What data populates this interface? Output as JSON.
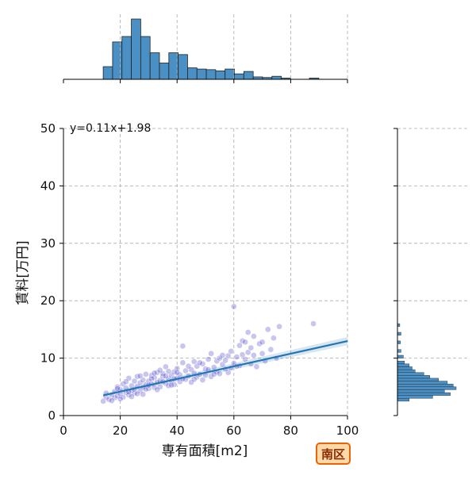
{
  "chart_data": {
    "type": "scatter",
    "title": "",
    "xlabel": "専有面積[m2]",
    "ylabel": "賃料[万円]",
    "xlim": [
      0,
      100
    ],
    "ylim": [
      0,
      50
    ],
    "x_ticks": [
      0,
      20,
      40,
      60,
      80,
      100
    ],
    "y_ticks": [
      0,
      10,
      20,
      30,
      40,
      50
    ],
    "grid": true,
    "badge": "南区",
    "regression": {
      "label": "y=0.11x+1.98",
      "slope": 0.11,
      "intercept": 1.98,
      "x_range": [
        14,
        100
      ],
      "color": "#1f77b4"
    },
    "point_color": "#3a2fc4",
    "hist_color": "#4a90c4",
    "top_histogram": {
      "bin_start": 14,
      "bin_width": 3.3,
      "relative_heights": [
        0.21,
        0.62,
        0.71,
        1.0,
        0.71,
        0.44,
        0.27,
        0.44,
        0.41,
        0.19,
        0.17,
        0.16,
        0.14,
        0.17,
        0.09,
        0.13,
        0.04,
        0.03,
        0.05,
        0.02,
        0.0,
        0.0,
        0.02
      ]
    },
    "right_histogram": {
      "bins": [
        {
          "y": 2.5,
          "rel": 0.2
        },
        {
          "y": 3.0,
          "rel": 0.6
        },
        {
          "y": 3.5,
          "rel": 0.9
        },
        {
          "y": 4.0,
          "rel": 0.8
        },
        {
          "y": 4.5,
          "rel": 1.0
        },
        {
          "y": 5.0,
          "rel": 0.95
        },
        {
          "y": 5.5,
          "rel": 0.85
        },
        {
          "y": 6.0,
          "rel": 0.7
        },
        {
          "y": 6.5,
          "rel": 0.55
        },
        {
          "y": 7.0,
          "rel": 0.45
        },
        {
          "y": 7.5,
          "rel": 0.3
        },
        {
          "y": 8.0,
          "rel": 0.25
        },
        {
          "y": 8.5,
          "rel": 0.2
        },
        {
          "y": 9.0,
          "rel": 0.12
        },
        {
          "y": 10.0,
          "rel": 0.1
        },
        {
          "y": 11.0,
          "rel": 0.06
        },
        {
          "y": 12.5,
          "rel": 0.05
        },
        {
          "y": 14.0,
          "rel": 0.06
        },
        {
          "y": 15.5,
          "rel": 0.04
        }
      ]
    },
    "points": [
      [
        14,
        2.5
      ],
      [
        15,
        3.2
      ],
      [
        16,
        2.8
      ],
      [
        17,
        3.6
      ],
      [
        18,
        3.1
      ],
      [
        18,
        4.2
      ],
      [
        19,
        3.4
      ],
      [
        19,
        5.0
      ],
      [
        20,
        3.8
      ],
      [
        20,
        4.5
      ],
      [
        21,
        3.2
      ],
      [
        21,
        5.5
      ],
      [
        22,
        4.0
      ],
      [
        22,
        4.8
      ],
      [
        23,
        3.6
      ],
      [
        23,
        6.5
      ],
      [
        24,
        4.4
      ],
      [
        24,
        5.2
      ],
      [
        25,
        3.9
      ],
      [
        25,
        6.0
      ],
      [
        25,
        4.6
      ],
      [
        26,
        5.1
      ],
      [
        26,
        6.8
      ],
      [
        27,
        4.3
      ],
      [
        27,
        5.7
      ],
      [
        28,
        4.9
      ],
      [
        28,
        6.2
      ],
      [
        29,
        5.4
      ],
      [
        29,
        7.2
      ],
      [
        30,
        4.7
      ],
      [
        30,
        6.0
      ],
      [
        31,
        5.5
      ],
      [
        31,
        7.0
      ],
      [
        32,
        4.9
      ],
      [
        32,
        6.6
      ],
      [
        33,
        5.8
      ],
      [
        33,
        7.5
      ],
      [
        34,
        6.1
      ],
      [
        34,
        5.0
      ],
      [
        35,
        6.8
      ],
      [
        35,
        7.3
      ],
      [
        36,
        5.6
      ],
      [
        36,
        8.5
      ],
      [
        37,
        6.4
      ],
      [
        37,
        5.2
      ],
      [
        38,
        7.0
      ],
      [
        38,
        6.0
      ],
      [
        39,
        7.6
      ],
      [
        39,
        5.4
      ],
      [
        40,
        6.5
      ],
      [
        40,
        8.2
      ],
      [
        41,
        7.1
      ],
      [
        41,
        5.9
      ],
      [
        42,
        9.2
      ],
      [
        42,
        12.1
      ],
      [
        43,
        6.3
      ],
      [
        43,
        7.8
      ],
      [
        44,
        6.9
      ],
      [
        45,
        8.0
      ],
      [
        45,
        5.8
      ],
      [
        46,
        7.4
      ],
      [
        46,
        9.4
      ],
      [
        47,
        6.7
      ],
      [
        47,
        8.6
      ],
      [
        48,
        7.2
      ],
      [
        49,
        9.0
      ],
      [
        49,
        6.2
      ],
      [
        50,
        8.1
      ],
      [
        50,
        7.0
      ],
      [
        51,
        9.8
      ],
      [
        52,
        10.8
      ],
      [
        52,
        6.8
      ],
      [
        53,
        8.4
      ],
      [
        54,
        7.6
      ],
      [
        54,
        9.5
      ],
      [
        55,
        10.0
      ],
      [
        55,
        7.3
      ],
      [
        56,
        8.9
      ],
      [
        57,
        9.6
      ],
      [
        58,
        7.5
      ],
      [
        58,
        10.4
      ],
      [
        59,
        8.3
      ],
      [
        60,
        9.1
      ],
      [
        60,
        19.0
      ],
      [
        61,
        10.2
      ],
      [
        62,
        8.7
      ],
      [
        62,
        12.2
      ],
      [
        63,
        13.0
      ],
      [
        64,
        9.8
      ],
      [
        65,
        14.5
      ],
      [
        65,
        11.0
      ],
      [
        66,
        9.0
      ],
      [
        67,
        10.5
      ],
      [
        68,
        8.5
      ],
      [
        69,
        12.5
      ],
      [
        70,
        10.8
      ],
      [
        71,
        9.5
      ],
      [
        72,
        15.0
      ],
      [
        73,
        11.5
      ],
      [
        74,
        13.5
      ],
      [
        75,
        10.0
      ],
      [
        76,
        15.5
      ],
      [
        88,
        16.0
      ],
      [
        20,
        2.9
      ],
      [
        23,
        4.1
      ],
      [
        26,
        3.8
      ],
      [
        29,
        4.6
      ],
      [
        31,
        6.4
      ],
      [
        34,
        7.9
      ],
      [
        37,
        7.7
      ],
      [
        15,
        3.9
      ],
      [
        17,
        2.6
      ],
      [
        19,
        4.7
      ],
      [
        22,
        5.9
      ],
      [
        24,
        3.3
      ],
      [
        27,
        6.9
      ],
      [
        28,
        3.7
      ],
      [
        30,
        5.3
      ],
      [
        32,
        7.4
      ],
      [
        33,
        4.5
      ],
      [
        35,
        5.9
      ],
      [
        36,
        6.9
      ],
      [
        38,
        5.3
      ],
      [
        39,
        6.4
      ],
      [
        40,
        7.5
      ],
      [
        42,
        6.4
      ],
      [
        44,
        8.6
      ],
      [
        46,
        6.3
      ],
      [
        48,
        9.2
      ],
      [
        51,
        8.0
      ],
      [
        53,
        7.2
      ],
      [
        56,
        10.5
      ],
      [
        57,
        8.1
      ],
      [
        59,
        11.2
      ],
      [
        61,
        8.6
      ],
      [
        63,
        10.6
      ],
      [
        64,
        12.8
      ],
      [
        66,
        11.8
      ],
      [
        67,
        13.8
      ],
      [
        70,
        12.8
      ]
    ]
  }
}
